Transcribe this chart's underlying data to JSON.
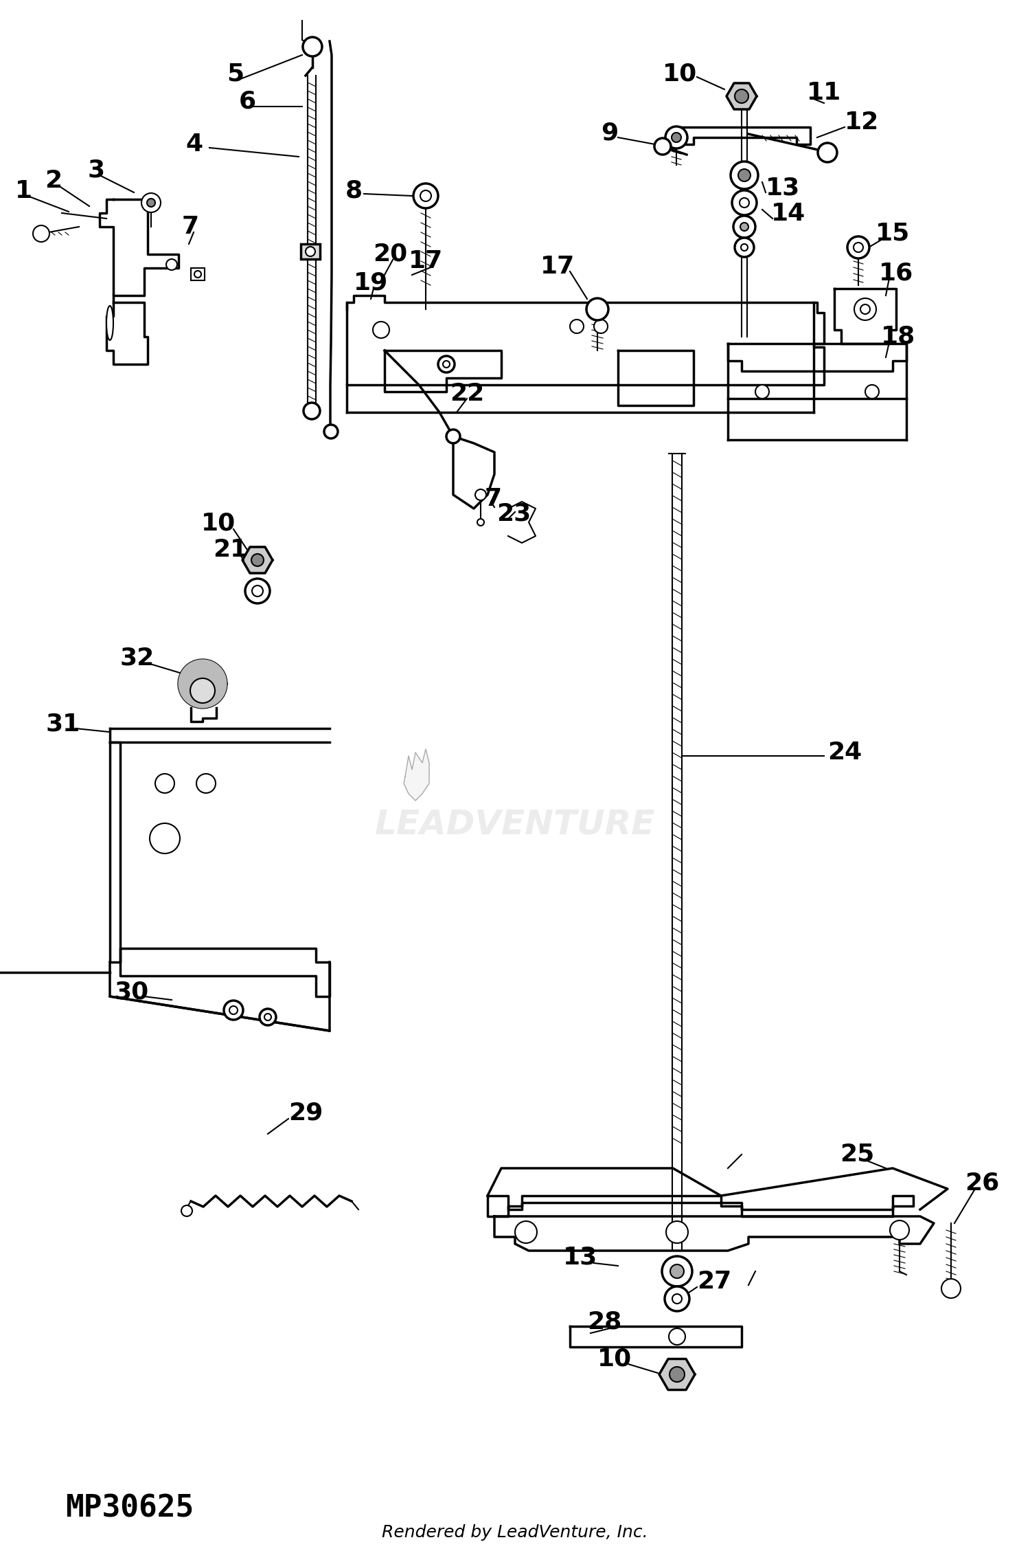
{
  "part_number": "MP30625",
  "footer": "Rendered by LeadVenture, Inc.",
  "bg_color": "#ffffff",
  "line_color": "#000000",
  "watermark": "LEADVENTURE",
  "figsize": [
    15.0,
    22.57
  ],
  "dpi": 100,
  "xlim": [
    0,
    1500
  ],
  "ylim": [
    0,
    2257
  ]
}
